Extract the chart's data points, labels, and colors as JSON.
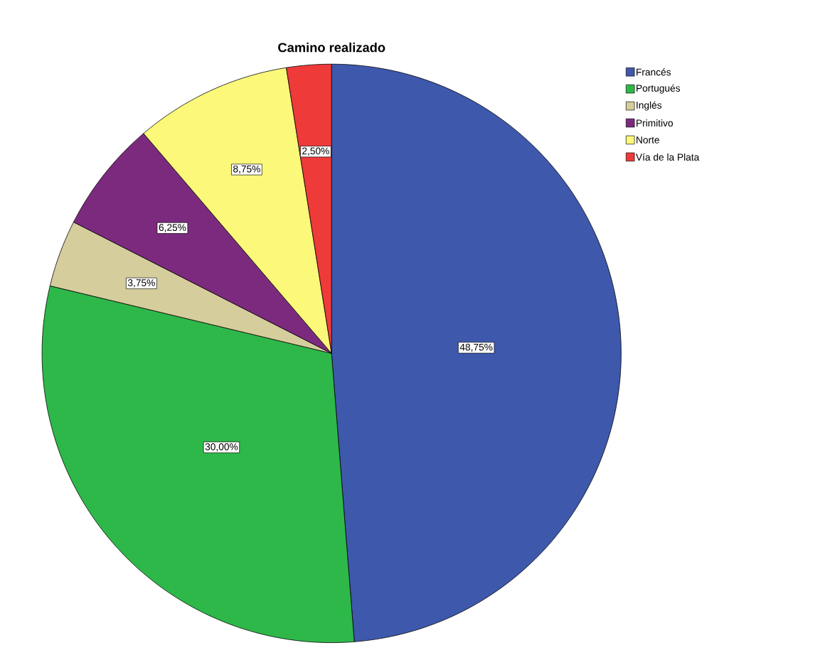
{
  "chart_data": {
    "type": "pie",
    "title": "Camino realizado",
    "categories": [
      "Francés",
      "Portugués",
      "Inglés",
      "Primitivo",
      "Norte",
      "Vía de la Plata"
    ],
    "values": [
      48.75,
      30.0,
      3.75,
      6.25,
      8.75,
      2.5
    ],
    "value_labels": [
      "48,75%",
      "30,00%",
      "3,75%",
      "6,25%",
      "8,75%",
      "2,50%"
    ],
    "colors": [
      "#3e58ac",
      "#2eb84a",
      "#d5cd9b",
      "#7b2a7e",
      "#fbf87a",
      "#ef3a3a"
    ],
    "legend": "top right"
  }
}
